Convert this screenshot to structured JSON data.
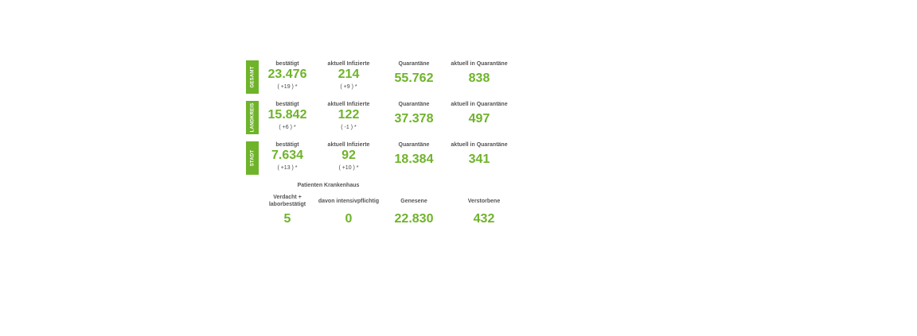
{
  "blocks": [
    {
      "label": "GESAMT",
      "bestaetigt_head": "bestätigt",
      "bestaetigt": "23.476",
      "bestaetigt_delta": "( +19 ) *",
      "infizierte_head": "aktuell Infizierte",
      "infizierte": "214",
      "infizierte_delta": "( +9 ) *",
      "quarantaene_head": "Quarantäne",
      "quarantaene": "55.762",
      "aktuell_quarantaene_head": "aktuell in Quarantäne",
      "aktuell_quarantaene": "838"
    },
    {
      "label": "LANDKREIS",
      "bestaetigt_head": "bestätigt",
      "bestaetigt": "15.842",
      "bestaetigt_delta": "( +6 ) *",
      "infizierte_head": "aktuell Infizierte",
      "infizierte": "122",
      "infizierte_delta": "( -1 ) *",
      "quarantaene_head": "Quarantäne",
      "quarantaene": "37.378",
      "aktuell_quarantaene_head": "aktuell in Quarantäne",
      "aktuell_quarantaene": "497"
    },
    {
      "label": "STADT",
      "bestaetigt_head": "bestätigt",
      "bestaetigt": "7.634",
      "bestaetigt_delta": "( +13 ) *",
      "infizierte_head": "aktuell Infizierte",
      "infizierte": "92",
      "infizierte_delta": "( +10 ) *",
      "quarantaene_head": "Quarantäne",
      "quarantaene": "18.384",
      "aktuell_quarantaene_head": "aktuell in Quarantäne",
      "aktuell_quarantaene": "341"
    }
  ],
  "bottom": {
    "title": "Patienten Krankenhaus",
    "verdacht_head_line1": "Verdacht +",
    "verdacht_head_line2": "laborbestätigt",
    "verdacht": "5",
    "intensiv_head": "davon intensivpflichtig",
    "intensiv": "0",
    "genesene_head": "Genesene",
    "genesene": "22.830",
    "verstorbene_head": "Verstorbene",
    "verstorbene": "432"
  },
  "colors": {
    "accent": "#6fb32a",
    "heading": "#555555"
  }
}
